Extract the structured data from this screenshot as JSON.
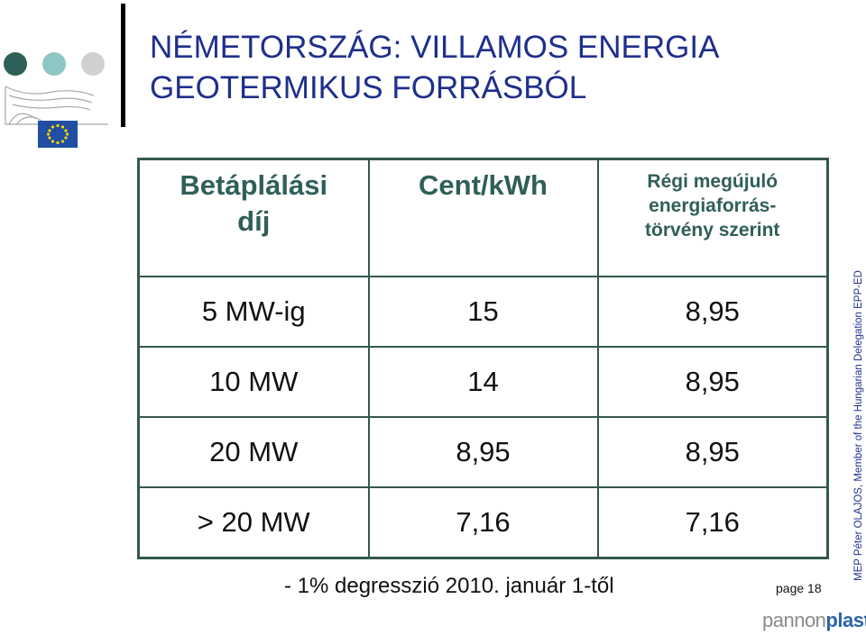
{
  "title": {
    "line1": "NÉMETORSZÁG: VILLAMOS ENERGIA",
    "line2": "GEOTERMIKUS FORRÁSBÓL"
  },
  "table": {
    "headers": [
      {
        "lines": [
          "Betáplálási",
          "díj"
        ]
      },
      {
        "lines": [
          "Cent/kWh"
        ]
      },
      {
        "lines": [
          "Régi megújuló",
          "energiaforrás-",
          "törvény szerint"
        ]
      }
    ],
    "rows": [
      [
        "5 MW-ig",
        "15",
        "8,95"
      ],
      [
        "10 MW",
        "14",
        "8,95"
      ],
      [
        "20 MW",
        "8,95",
        "8,95"
      ],
      [
        "> 20 MW",
        "7,16",
        "7,16"
      ]
    ]
  },
  "footnote": "- 1% degresszió 2010. január 1-től",
  "page_label": "page 18",
  "side_text": "MEP Péter OLAJOS, Member of the Hungarian Delegation EPP-ED",
  "brand": {
    "part1": "pannon",
    "part2": "plast"
  },
  "colors": {
    "title": "#1f2f8c",
    "table_border": "#33584f",
    "header_text": "#2f5f58",
    "dot_dark": "#2f5f58",
    "dot_light": "#8ec6c6",
    "dot_grey": "#d0d0d0",
    "eu_blue": "#1f4ea3",
    "eu_star": "#ffd200",
    "brand_blue": "#2b64a8"
  },
  "icons": [
    "european-parliament-logo-icon",
    "eu-flag-icon"
  ]
}
